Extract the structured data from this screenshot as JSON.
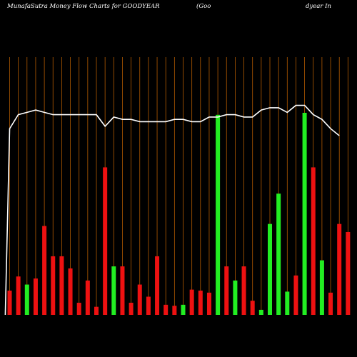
{
  "header": {
    "title_left": "MunafaSutra  Money Flow  Charts for GOODYEAR",
    "title_mid": "(Goo",
    "title_right": "dyear In"
  },
  "colors": {
    "background": "#000000",
    "grid": "#b35a00",
    "up": "#22ee22",
    "down": "#ee1111",
    "line": "#ffffff"
  },
  "chart_data": {
    "type": "bar",
    "grid": true,
    "bar_ylim": [
      0,
      100
    ],
    "line_ylim": [
      0,
      100
    ],
    "categories": [
      "",
      "",
      "",
      "",
      "",
      "",
      "",
      "",
      "",
      "",
      "",
      "",
      "",
      "",
      "",
      "",
      "",
      "",
      "",
      "",
      "",
      "",
      "",
      "",
      "",
      "",
      "",
      "",
      "",
      "",
      "",
      "",
      "",
      "",
      "",
      "",
      "",
      "",
      "",
      ""
    ],
    "bars": [
      {
        "value": 12,
        "dir": "down"
      },
      {
        "value": 19,
        "dir": "down"
      },
      {
        "value": 15,
        "dir": "up"
      },
      {
        "value": 18,
        "dir": "down"
      },
      {
        "value": 44,
        "dir": "down"
      },
      {
        "value": 29,
        "dir": "down"
      },
      {
        "value": 29,
        "dir": "down"
      },
      {
        "value": 23,
        "dir": "down"
      },
      {
        "value": 6,
        "dir": "down"
      },
      {
        "value": 17,
        "dir": "down"
      },
      {
        "value": 4,
        "dir": "down"
      },
      {
        "value": 73,
        "dir": "down"
      },
      {
        "value": 24,
        "dir": "up"
      },
      {
        "value": 24,
        "dir": "down"
      },
      {
        "value": 6,
        "dir": "down"
      },
      {
        "value": 15,
        "dir": "down"
      },
      {
        "value": 9,
        "dir": "down"
      },
      {
        "value": 29,
        "dir": "down"
      },
      {
        "value": 5,
        "dir": "down"
      },
      {
        "value": 4.5,
        "dir": "down"
      },
      {
        "value": 5,
        "dir": "up"
      },
      {
        "value": 12.5,
        "dir": "down"
      },
      {
        "value": 12,
        "dir": "down"
      },
      {
        "value": 11,
        "dir": "down"
      },
      {
        "value": 99,
        "dir": "up"
      },
      {
        "value": 24,
        "dir": "down"
      },
      {
        "value": 17,
        "dir": "up"
      },
      {
        "value": 24,
        "dir": "down"
      },
      {
        "value": 7,
        "dir": "down"
      },
      {
        "value": 2.5,
        "dir": "up"
      },
      {
        "value": 45,
        "dir": "up"
      },
      {
        "value": 60,
        "dir": "up"
      },
      {
        "value": 11.5,
        "dir": "up"
      },
      {
        "value": 19.5,
        "dir": "down"
      },
      {
        "value": 100,
        "dir": "up"
      },
      {
        "value": 73,
        "dir": "down"
      },
      {
        "value": 27,
        "dir": "up"
      },
      {
        "value": 11,
        "dir": "down"
      },
      {
        "value": 45,
        "dir": "down"
      },
      {
        "value": 41,
        "dir": "down"
      }
    ],
    "line_values": [
      0,
      80,
      86,
      87,
      88,
      87,
      86,
      86,
      86,
      86,
      86,
      86,
      81,
      85,
      84,
      84,
      83,
      83,
      83,
      83,
      84,
      84,
      83,
      83,
      85,
      85,
      86,
      86,
      85,
      85,
      88,
      89,
      89,
      87,
      90,
      90,
      86,
      84,
      80,
      77
    ],
    "line_points": [
      {
        "i": -0.5,
        "y": 0
      },
      {
        "i": 0,
        "y": 80
      },
      {
        "i": 1,
        "y": 86
      },
      {
        "i": 2,
        "y": 87
      },
      {
        "i": 3,
        "y": 88
      },
      {
        "i": 4,
        "y": 87
      },
      {
        "i": 5,
        "y": 86
      },
      {
        "i": 6,
        "y": 86
      },
      {
        "i": 7,
        "y": 86
      },
      {
        "i": 8,
        "y": 86
      },
      {
        "i": 9,
        "y": 86
      },
      {
        "i": 10,
        "y": 86
      },
      {
        "i": 11,
        "y": 81
      },
      {
        "i": 12,
        "y": 85
      },
      {
        "i": 13,
        "y": 84
      },
      {
        "i": 14,
        "y": 84
      },
      {
        "i": 15,
        "y": 83
      },
      {
        "i": 16,
        "y": 83
      },
      {
        "i": 17,
        "y": 83
      },
      {
        "i": 18,
        "y": 83
      },
      {
        "i": 19,
        "y": 84
      },
      {
        "i": 20,
        "y": 84
      },
      {
        "i": 21,
        "y": 83
      },
      {
        "i": 22,
        "y": 83
      },
      {
        "i": 23,
        "y": 85
      },
      {
        "i": 24,
        "y": 85
      },
      {
        "i": 25,
        "y": 86
      },
      {
        "i": 26,
        "y": 86
      },
      {
        "i": 27,
        "y": 85
      },
      {
        "i": 28,
        "y": 85
      },
      {
        "i": 29,
        "y": 88
      },
      {
        "i": 30,
        "y": 89
      },
      {
        "i": 31,
        "y": 89
      },
      {
        "i": 32,
        "y": 87
      },
      {
        "i": 33,
        "y": 90
      },
      {
        "i": 34,
        "y": 90
      },
      {
        "i": 35,
        "y": 86
      },
      {
        "i": 36,
        "y": 84
      },
      {
        "i": 37,
        "y": 80
      },
      {
        "i": 38,
        "y": 77
      }
    ]
  }
}
